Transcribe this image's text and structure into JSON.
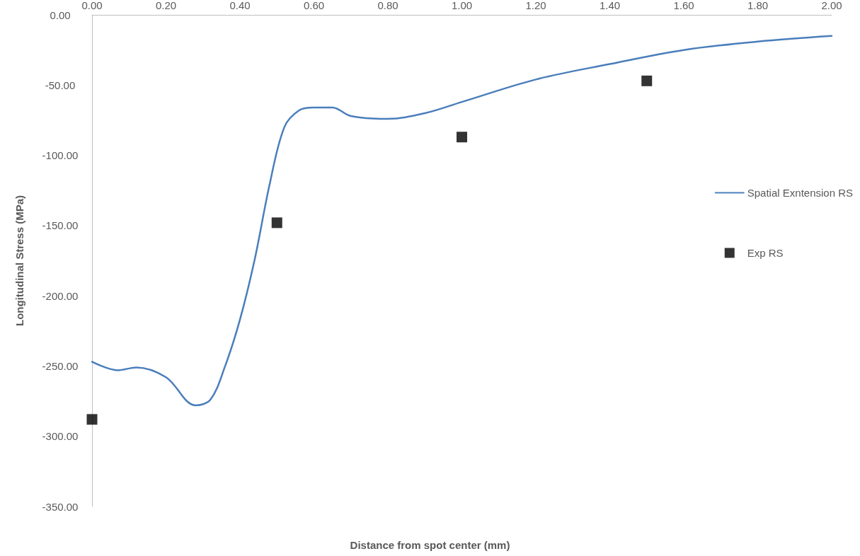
{
  "chart_data": {
    "type": "line",
    "xlabel": "Distance from spot center (mm)",
    "ylabel": "Longitudinal Stress (MPa)",
    "xlim": [
      0,
      2
    ],
    "ylim": [
      -350,
      0
    ],
    "xticks": [
      {
        "value": 0,
        "label": "0.00"
      },
      {
        "value": 0.2,
        "label": "0.20"
      },
      {
        "value": 0.4,
        "label": "0.40"
      },
      {
        "value": 0.6,
        "label": "0.60"
      },
      {
        "value": 0.8,
        "label": "0.80"
      },
      {
        "value": 1,
        "label": "1.00"
      },
      {
        "value": 1.2,
        "label": "1.20"
      },
      {
        "value": 1.4,
        "label": "1.40"
      },
      {
        "value": 1.6,
        "label": "1.60"
      },
      {
        "value": 1.8,
        "label": "1.80"
      },
      {
        "value": 2,
        "label": "2.00"
      }
    ],
    "yticks": [
      {
        "value": 0,
        "label": "0.00"
      },
      {
        "value": -50,
        "label": "-50.00"
      },
      {
        "value": -100,
        "label": "-100.00"
      },
      {
        "value": -150,
        "label": "-150.00"
      },
      {
        "value": -200,
        "label": "-200.00"
      },
      {
        "value": -250,
        "label": "-250.00"
      },
      {
        "value": -300,
        "label": "-300.00"
      },
      {
        "value": -350,
        "label": "-350.00"
      }
    ],
    "grid": false,
    "legend": "right",
    "series": [
      {
        "name": "Spatial Exntension RS",
        "color": "#4a7ebb",
        "marker": "none",
        "line_style": "solid",
        "x": [
          0,
          0.07,
          0.12,
          0.2,
          0.28,
          0.32,
          0.36,
          0.4,
          0.44,
          0.48,
          0.52,
          0.56,
          0.6,
          0.65,
          0.7,
          0.8,
          0.9,
          1,
          1.2,
          1.4,
          1.6,
          1.8,
          2
        ],
        "values": [
          -247,
          -253,
          -251,
          -258,
          -278,
          -274,
          -250,
          -217,
          -174,
          -121,
          -80,
          -68,
          -66,
          -66,
          -72,
          -74,
          -70,
          -62,
          -46,
          -35,
          -25,
          -19,
          -15
        ]
      },
      {
        "name": "Exp RS",
        "type": "scatter",
        "color": "#000000",
        "marker": "square",
        "x": [
          0,
          0.5,
          1,
          1.5
        ],
        "values": [
          -288,
          -148,
          -87,
          -47
        ]
      }
    ]
  }
}
